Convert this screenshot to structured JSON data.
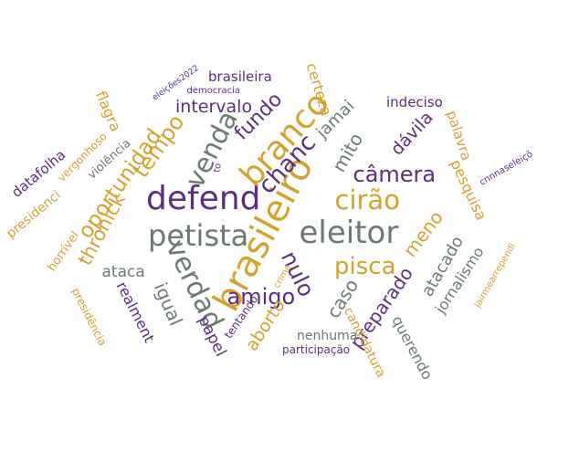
{
  "palette": {
    "purple": "#5b2c83",
    "gold": "#d4a22c",
    "gray": "#6b7a6e"
  },
  "words": [
    {
      "text": "brasileiro",
      "color": "gold"
    },
    {
      "text": "defend",
      "color": "purple"
    },
    {
      "text": "branco",
      "color": "gold"
    },
    {
      "text": "eleitor",
      "color": "gray"
    },
    {
      "text": "petista",
      "color": "gray"
    },
    {
      "text": "verdad",
      "color": "gray"
    },
    {
      "text": "venda",
      "color": "gray"
    },
    {
      "text": "cirão",
      "color": "gold"
    },
    {
      "text": "chanc",
      "color": "purple"
    },
    {
      "text": "pisca",
      "color": "gold"
    },
    {
      "text": "câmera",
      "color": "purple"
    },
    {
      "text": "amigo",
      "color": "purple"
    },
    {
      "text": "tempo",
      "color": "gold"
    },
    {
      "text": "nulo",
      "color": "purple"
    },
    {
      "text": "oportunidad",
      "color": "gold"
    },
    {
      "text": "fundo",
      "color": "purple"
    },
    {
      "text": "mito",
      "color": "gray"
    },
    {
      "text": "igual",
      "color": "gray"
    },
    {
      "text": "thronick",
      "color": "gold"
    },
    {
      "text": "meno",
      "color": "gold"
    },
    {
      "text": "caso",
      "color": "gray"
    },
    {
      "text": "dávila",
      "color": "purple"
    },
    {
      "text": "intervalo",
      "color": "purple"
    },
    {
      "text": "preparado",
      "color": "purple"
    },
    {
      "text": "jamai",
      "color": "gray"
    },
    {
      "text": "aborto",
      "color": "gold"
    },
    {
      "text": "atacado",
      "color": "gray"
    },
    {
      "text": "ataca",
      "color": "gray"
    },
    {
      "text": "papel",
      "color": "purple"
    },
    {
      "text": "realment",
      "color": "purple"
    },
    {
      "text": "certeza",
      "color": "gold"
    },
    {
      "text": "flagra",
      "color": "gold"
    },
    {
      "text": "pesquisa",
      "color": "gold"
    },
    {
      "text": "jornalismo",
      "color": "gray"
    },
    {
      "text": "querendo",
      "color": "gray"
    },
    {
      "text": "palavra",
      "color": "gold"
    },
    {
      "text": "indeciso",
      "color": "purple"
    },
    {
      "text": "brasileira",
      "color": "purple"
    },
    {
      "text": "candidatura",
      "color": "gold"
    },
    {
      "text": "nenhuma",
      "color": "gray"
    },
    {
      "text": "tentando",
      "color": "purple"
    },
    {
      "text": "datafolha",
      "color": "purple"
    },
    {
      "text": "presidenci",
      "color": "gold"
    },
    {
      "text": "horrível",
      "color": "gold"
    },
    {
      "text": "violência",
      "color": "gray"
    },
    {
      "text": "vergonhoso",
      "color": "gold"
    },
    {
      "text": "presidência",
      "color": "gold"
    },
    {
      "text": "participação",
      "color": "purple"
    },
    {
      "text": "democracia",
      "color": "purple"
    },
    {
      "text": "eleições2022",
      "color": "purple"
    },
    {
      "text": "cnnnaseleiçõ",
      "color": "purple"
    },
    {
      "text": "jairmearrependi",
      "color": "gold"
    },
    {
      "text": "to",
      "color": "purple"
    },
    {
      "text": "crime",
      "color": "gold"
    }
  ]
}
